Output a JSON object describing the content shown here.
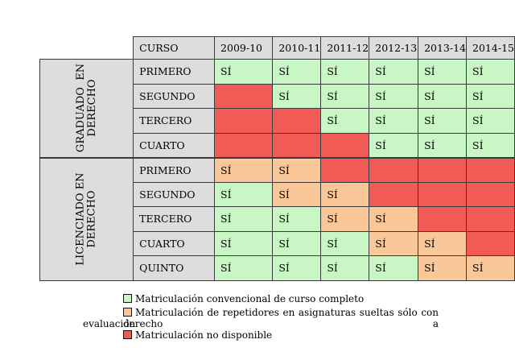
{
  "header": {
    "curso": "CURSO",
    "years": [
      "2009-10",
      "2010-11",
      "2011-12",
      "2012-13",
      "2013-14",
      "2014-15"
    ]
  },
  "groups": [
    {
      "label": "GRADUADO  EN\nDERECHO",
      "rows": [
        {
          "course": "PRIMERO",
          "cells": [
            [
              "SÍ",
              "green"
            ],
            [
              "SÍ",
              "green"
            ],
            [
              "SÍ",
              "green"
            ],
            [
              "SÍ",
              "green"
            ],
            [
              "SÍ",
              "green"
            ],
            [
              "SÍ",
              "green"
            ]
          ]
        },
        {
          "course": "SEGUNDO",
          "cells": [
            [
              "",
              "red"
            ],
            [
              "SÍ",
              "green"
            ],
            [
              "SÍ",
              "green"
            ],
            [
              "SÍ",
              "green"
            ],
            [
              "SÍ",
              "green"
            ],
            [
              "SÍ",
              "green"
            ]
          ]
        },
        {
          "course": "TERCERO",
          "cells": [
            [
              "",
              "red"
            ],
            [
              "",
              "red"
            ],
            [
              "SÍ",
              "green"
            ],
            [
              "SÍ",
              "green"
            ],
            [
              "SÍ",
              "green"
            ],
            [
              "SÍ",
              "green"
            ]
          ]
        },
        {
          "course": "CUARTO",
          "cells": [
            [
              "",
              "red"
            ],
            [
              "",
              "red"
            ],
            [
              "",
              "red"
            ],
            [
              "SÍ",
              "green"
            ],
            [
              "SÍ",
              "green"
            ],
            [
              "SÍ",
              "green"
            ]
          ]
        }
      ]
    },
    {
      "label": "LICENCIADO EN\nDERECHO",
      "rows": [
        {
          "course": "PRIMERO",
          "cells": [
            [
              "SÍ",
              "orange"
            ],
            [
              "SÍ",
              "orange"
            ],
            [
              "",
              "red"
            ],
            [
              "",
              "red"
            ],
            [
              "",
              "red"
            ],
            [
              "",
              "red"
            ]
          ]
        },
        {
          "course": "SEGUNDO",
          "cells": [
            [
              "SÍ",
              "green"
            ],
            [
              "SÍ",
              "orange"
            ],
            [
              "SÍ",
              "orange"
            ],
            [
              "",
              "red"
            ],
            [
              "",
              "red"
            ],
            [
              "",
              "red"
            ]
          ]
        },
        {
          "course": "TERCERO",
          "cells": [
            [
              "SÍ",
              "green"
            ],
            [
              "SÍ",
              "green"
            ],
            [
              "SÍ",
              "orange"
            ],
            [
              "SÍ",
              "orange"
            ],
            [
              "",
              "red"
            ],
            [
              "",
              "red"
            ]
          ]
        },
        {
          "course": "CUARTO",
          "cells": [
            [
              "SÍ",
              "green"
            ],
            [
              "SÍ",
              "green"
            ],
            [
              "SÍ",
              "green"
            ],
            [
              "SÍ",
              "orange"
            ],
            [
              "SÍ",
              "orange"
            ],
            [
              "",
              "red"
            ]
          ]
        },
        {
          "course": "QUINTO",
          "cells": [
            [
              "SÍ",
              "green"
            ],
            [
              "SÍ",
              "green"
            ],
            [
              "SÍ",
              "green"
            ],
            [
              "SÍ",
              "green"
            ],
            [
              "SÍ",
              "orange"
            ],
            [
              "SÍ",
              "orange"
            ]
          ]
        }
      ]
    }
  ],
  "legend": {
    "green": "Matriculación convencional de curso completo",
    "orange_line1": "Matriculación de repetidores en asignaturas sueltas sólo con derecho a",
    "orange_line2": "evaluación",
    "red": "Matriculación no disponible"
  },
  "colors": {
    "green": "#c8f7c5",
    "orange": "#fac898",
    "red": "#f25a55",
    "header_gray": "#dddddd"
  }
}
